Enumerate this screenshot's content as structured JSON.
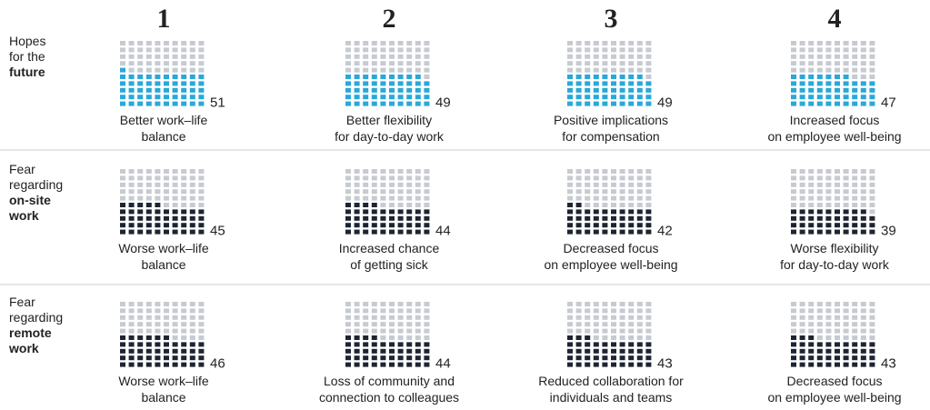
{
  "chart_data": {
    "type": "waffle",
    "columns": [
      "1",
      "2",
      "3",
      "4"
    ],
    "rows": [
      {
        "label": [
          "Hopes",
          "for the"
        ],
        "label_bold": [
          "future"
        ],
        "color": "#2aa8d8",
        "items": [
          {
            "label": [
              "Better work–life",
              "balance"
            ],
            "value": 51
          },
          {
            "label": [
              "Better flexibility",
              "for day-to-day work"
            ],
            "value": 49
          },
          {
            "label": [
              "Positive implications",
              "for compensation"
            ],
            "value": 49
          },
          {
            "label": [
              "Increased focus",
              "on employee well-being"
            ],
            "value": 47
          }
        ]
      },
      {
        "label": [
          "Fear",
          "regarding"
        ],
        "label_bold": [
          "on-site",
          "work"
        ],
        "color": "#1d2532",
        "items": [
          {
            "label": [
              "Worse work–life",
              "balance"
            ],
            "value": 45
          },
          {
            "label": [
              "Increased chance",
              "of getting sick"
            ],
            "value": 44
          },
          {
            "label": [
              "Decreased focus",
              "on employee well-being"
            ],
            "value": 42
          },
          {
            "label": [
              "Worse flexibility",
              "for day-to-day work"
            ],
            "value": 39
          }
        ]
      },
      {
        "label": [
          "Fear",
          "regarding"
        ],
        "label_bold": [
          "remote",
          "work"
        ],
        "color": "#1d2532",
        "items": [
          {
            "label": [
              "Worse work–life",
              "balance"
            ],
            "value": 46
          },
          {
            "label": [
              "Loss of community and",
              "connection to colleagues"
            ],
            "value": 44
          },
          {
            "label": [
              "Reduced collaboration for",
              "individuals and teams"
            ],
            "value": 43
          },
          {
            "label": [
              "Decreased focus",
              "on employee well-being"
            ],
            "value": 43
          }
        ]
      }
    ]
  }
}
